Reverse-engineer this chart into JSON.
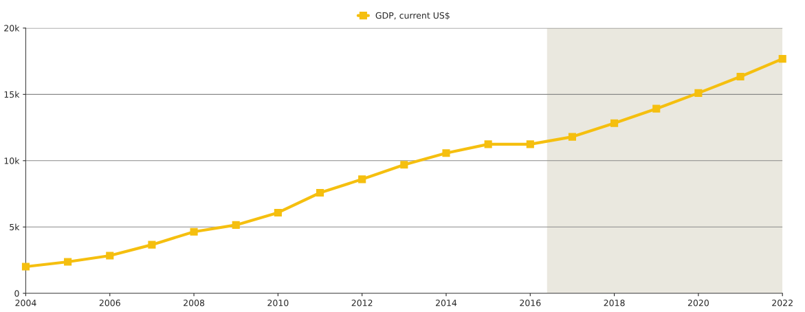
{
  "chart_data": {
    "type": "line",
    "x": [
      2004,
      2005,
      2006,
      2007,
      2008,
      2009,
      2010,
      2011,
      2012,
      2013,
      2014,
      2015,
      2016,
      2017,
      2018,
      2019,
      2020,
      2021,
      2022
    ],
    "series": [
      {
        "name": "GDP, current US$",
        "color": "#f5bf0f",
        "values": [
          2010,
          2370,
          2840,
          3660,
          4640,
          5150,
          6080,
          7580,
          8600,
          9690,
          10570,
          11240,
          11240,
          11800,
          12830,
          13920,
          15100,
          16340,
          17680
        ]
      }
    ],
    "xlim": [
      2004,
      2022
    ],
    "xticks": [
      2004,
      2006,
      2008,
      2010,
      2012,
      2014,
      2016,
      2018,
      2020,
      2022
    ],
    "ylim": [
      0,
      20000
    ],
    "yticks": [
      {
        "value": 0,
        "label": "0"
      },
      {
        "value": 5000,
        "label": "5k"
      },
      {
        "value": 10000,
        "label": "10k"
      },
      {
        "value": 15000,
        "label": "15k"
      },
      {
        "value": 20000,
        "label": "20k"
      }
    ],
    "bands": [
      {
        "axis": "x",
        "from": 2016.4,
        "to": 2022,
        "label": null,
        "color": "#eae8df"
      }
    ],
    "grid": "y",
    "legend": "top",
    "marker": "square",
    "line_style": "solid"
  }
}
